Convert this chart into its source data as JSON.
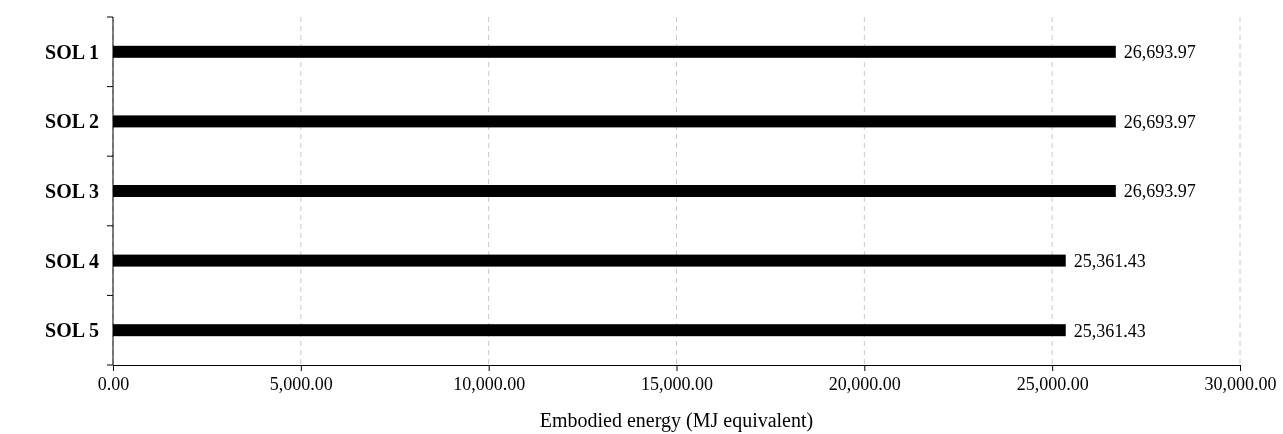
{
  "chart_data": {
    "type": "bar",
    "orientation": "horizontal",
    "xlabel": "Embodied energy (MJ equivalent)",
    "categories": [
      "SOL 1",
      "SOL 2",
      "SOL 3",
      "SOL 4",
      "SOL 5"
    ],
    "values": [
      26693.97,
      26693.97,
      26693.97,
      25361.43,
      25361.43
    ],
    "value_labels": [
      "26,693.97",
      "26,693.97",
      "26,693.97",
      "25,361.43",
      "25,361.43"
    ],
    "color": "#000000",
    "xlim": [
      0,
      30000
    ],
    "xticks": [
      {
        "value": 0,
        "label": "0.00"
      },
      {
        "value": 5000,
        "label": "5,000.00"
      },
      {
        "value": 10000,
        "label": "10,000.00"
      },
      {
        "value": 15000,
        "label": "15,000.00"
      },
      {
        "value": 20000,
        "label": "20,000.00"
      },
      {
        "value": 25000,
        "label": "25,000.00"
      },
      {
        "value": 30000,
        "label": "30,000.00"
      }
    ],
    "grid": "x"
  }
}
